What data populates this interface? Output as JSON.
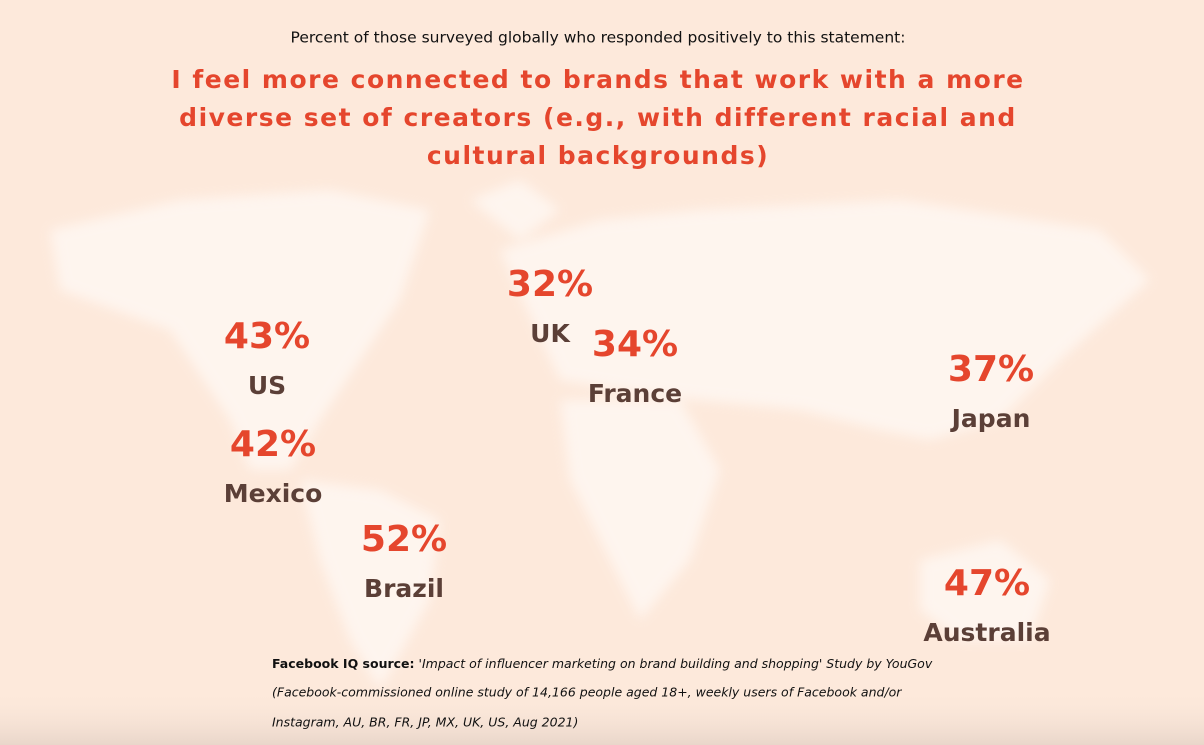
{
  "subtitle": "Percent of those surveyed globally who responded positively to this statement:",
  "headline": [
    "I feel more connected to brands that work with a more",
    "diverse set of creators (e.g., with different racial and",
    "cultural backgrounds)"
  ],
  "regions": [
    {
      "name": "US",
      "value": "43%"
    },
    {
      "name": "Mexico",
      "value": "42%"
    },
    {
      "name": "Brazil",
      "value": "52%"
    },
    {
      "name": "UK",
      "value": "32%"
    },
    {
      "name": "France",
      "value": "34%"
    },
    {
      "name": "Japan",
      "value": "37%"
    },
    {
      "name": "Australia",
      "value": "47%"
    }
  ],
  "source": {
    "label": "Facebook IQ source:",
    "lines": [
      "'Impact of influencer marketing on brand building and shopping' Study by YouGov",
      "(Facebook-commissioned online study of 14,166 people aged 18+, weekly users of Facebook and/or",
      "Instagram, AU, BR, FR, JP, MX, UK, US, Aug 2021)"
    ]
  }
}
